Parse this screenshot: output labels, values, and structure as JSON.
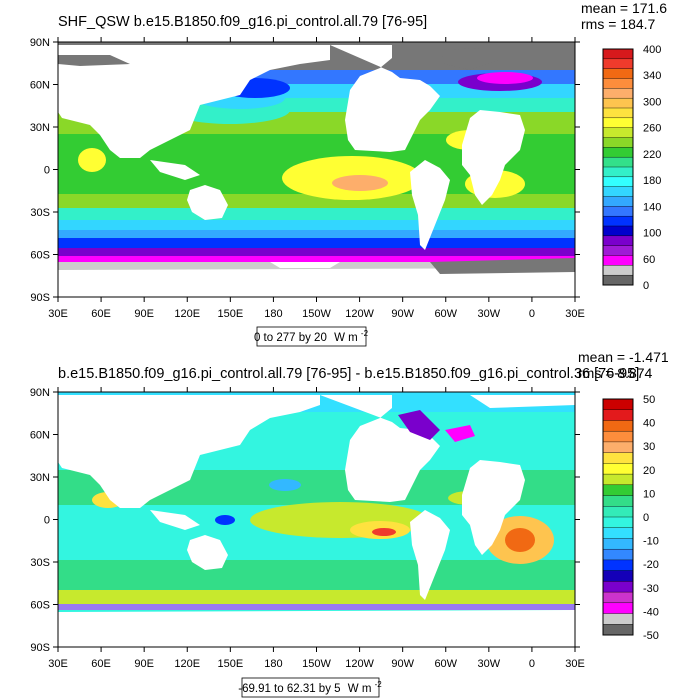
{
  "panels": [
    {
      "title": "SHF_QSW b.e15.B1850.f09_g16.pi_control.all.79 [76-95]",
      "stats": [
        "mean = 171.6",
        "rms = 184.7"
      ],
      "range_label": "0 to 277 by 20",
      "units": "W m",
      "units_exp": "-2",
      "lat_labels": [
        "90N",
        "60N",
        "30N",
        "0",
        "30S",
        "60S",
        "90S"
      ],
      "lon_labels": [
        "30E",
        "60E",
        "90E",
        "120E",
        "150E",
        "180",
        "150W",
        "120W",
        "90W",
        "60W",
        "30W",
        "0",
        "30E"
      ],
      "colorbar_labels": [
        "400",
        "340",
        "300",
        "260",
        "220",
        "180",
        "140",
        "100",
        "60",
        "0"
      ],
      "colorbar_colors": [
        "#d7191c",
        "#ef3b2c",
        "#f16913",
        "#fd8d3c",
        "#fdae6b",
        "#fec44f",
        "#fee23f",
        "#ffff33",
        "#c7e92d",
        "#8ad828",
        "#33cc33",
        "#33e08a",
        "#33f0c9",
        "#33ffff",
        "#33d6ff",
        "#33a8ff",
        "#3377ff",
        "#0033ff",
        "#0000cc",
        "#7a00cc",
        "#a01bd6",
        "#ff00ff",
        "#cccccc",
        "#666666"
      ]
    },
    {
      "title": "b.e15.B1850.f09_g16.pi_control.all.79 [76-95] - b.e15.B1850.f09_g16.pi_control.36 [76-95]",
      "stats": [
        "mean = -1.471",
        "rms = 8.874"
      ],
      "range_label": "-69.91 to 62.31 by 5",
      "units": "W m",
      "units_exp": "-2",
      "lat_labels": [
        "90N",
        "60N",
        "30N",
        "0",
        "30S",
        "60S",
        "90S"
      ],
      "lon_labels": [
        "30E",
        "60E",
        "90E",
        "120E",
        "150E",
        "180",
        "150W",
        "120W",
        "90W",
        "60W",
        "30W",
        "0",
        "30E"
      ],
      "colorbar_labels": [
        "50",
        "40",
        "30",
        "20",
        "10",
        "0",
        "-10",
        "-20",
        "-30",
        "-40",
        "-50"
      ],
      "colorbar_colors": [
        "#cc0000",
        "#e31a1c",
        "#f16913",
        "#fd8d3c",
        "#fdae6b",
        "#fee23f",
        "#ffff33",
        "#c7e92d",
        "#33cc33",
        "#33dd88",
        "#33ebb8",
        "#33f5e0",
        "#33e0ff",
        "#33b8ff",
        "#3388ff",
        "#0033ff",
        "#1400b8",
        "#7a00cc",
        "#cc33cc",
        "#ff00ff",
        "#cccccc",
        "#666666"
      ]
    }
  ]
}
